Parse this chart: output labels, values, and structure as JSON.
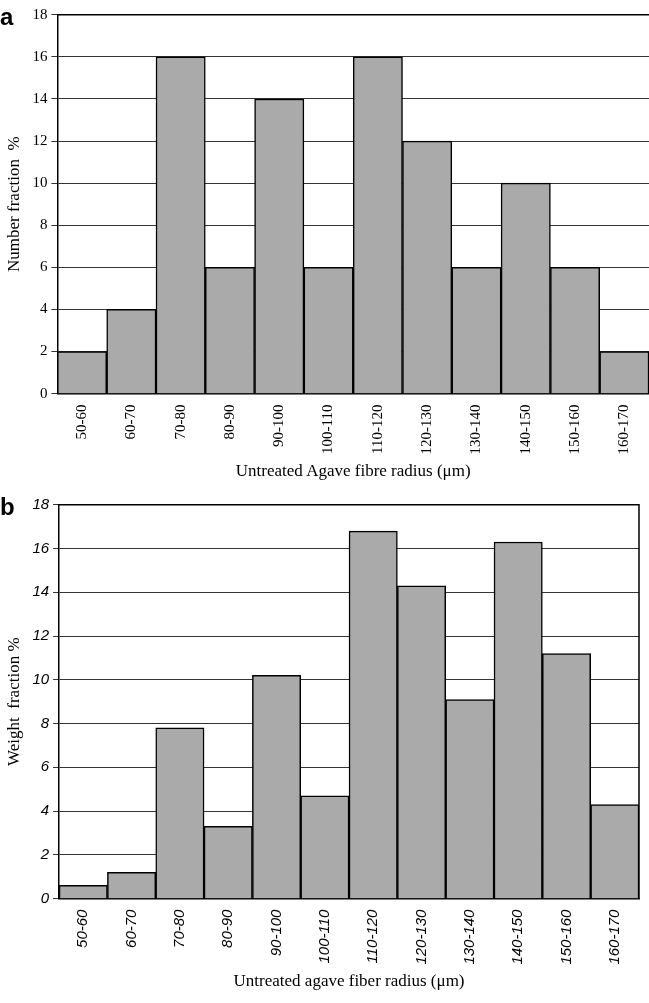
{
  "chart_data": [
    {
      "type": "bar",
      "title": "a",
      "categories": [
        "50-60",
        "60-70",
        "70-80",
        "80-90",
        "90-100",
        "100-110",
        "110-120",
        "120-130",
        "130-140",
        "140-150",
        "150-160",
        "160-170"
      ],
      "values": [
        2,
        4,
        16,
        6,
        14,
        6,
        16,
        12,
        6,
        10,
        6,
        2
      ],
      "color": "#aaaaaa",
      "xlabel": "Untreated Agave fibre radius (μm)",
      "ylabel": "Number fraction  %",
      "ylim": [
        0,
        18
      ],
      "yticks": [
        0,
        2,
        4,
        6,
        8,
        10,
        12,
        14,
        16,
        18
      ],
      "grid": "y",
      "legend": false
    },
    {
      "type": "bar",
      "title": "b",
      "categories": [
        "50-60",
        "60-70",
        "70-80",
        "80-90",
        "90-100",
        "100-110",
        "110-120",
        "120-130",
        "130-140",
        "140-150",
        "150-160",
        "160-170"
      ],
      "values": [
        0.6,
        1.2,
        7.8,
        3.3,
        10.2,
        4.7,
        16.8,
        14.3,
        9.1,
        16.3,
        11.2,
        4.3
      ],
      "color": "#aaaaaa",
      "xlabel": "Untreated agave fiber radius (μm)",
      "ylabel": "Weight  fraction %",
      "ylim": [
        0,
        18
      ],
      "yticks": [
        0,
        2,
        4,
        6,
        8,
        10,
        12,
        14,
        16,
        18
      ],
      "grid": "y",
      "legend": false
    }
  ]
}
